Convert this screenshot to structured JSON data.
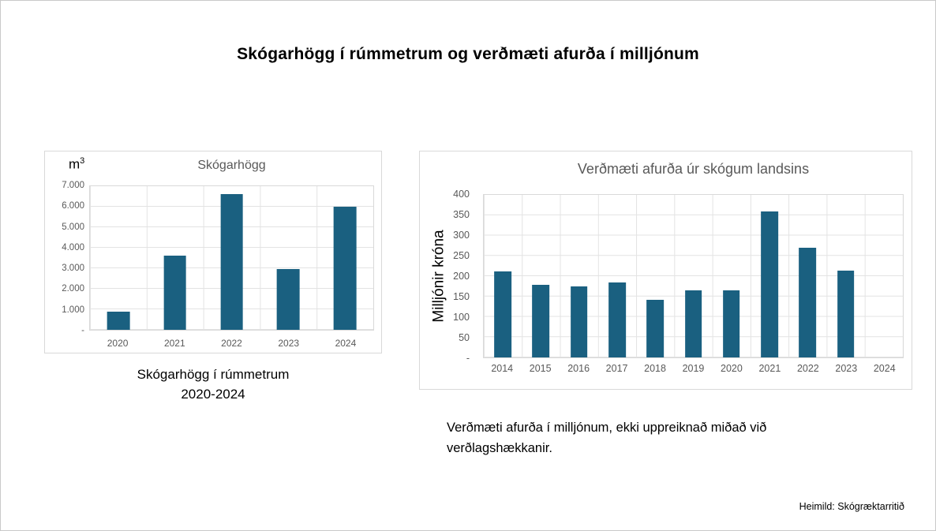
{
  "page": {
    "title": "Skógarhögg í rúmmetrum og verðmæti afurða í milljónum",
    "source_note": "Heimild: Skógræktarritið"
  },
  "captions": {
    "left_line1": "Skógarhögg í rúmmetrum",
    "left_line2": "2020-2024",
    "right": "Verðmæti afurða í milljónum, ekki uppreiknað miðað við verðlagshækkanir."
  },
  "colors": {
    "bar": "#1A6080",
    "axis_text": "#595959",
    "grid": "#E3E3E3",
    "chart_border": "#D9D9D9"
  },
  "chart_data": [
    {
      "type": "bar",
      "title": "Skógarhögg",
      "unit": {
        "base": "m",
        "sup": "3"
      },
      "categories": [
        "2020",
        "2021",
        "2022",
        "2023",
        "2024"
      ],
      "values": [
        900,
        3600,
        6600,
        2950,
        6000
      ],
      "ylim": [
        0,
        7000
      ],
      "ytick_labels": [
        "-",
        "1.000",
        "2.000",
        "3.000",
        "4.000",
        "5.000",
        "6.000",
        "7.000"
      ],
      "grid": true,
      "legend": "none",
      "bar_color": "#1A6080",
      "bar_width_frac": 0.4
    },
    {
      "type": "bar",
      "title": "Verðmæti afurða úr skógum landsins",
      "ylabel": "Milljónir króna",
      "categories": [
        "2014",
        "2015",
        "2016",
        "2017",
        "2018",
        "2019",
        "2020",
        "2021",
        "2022",
        "2023",
        "2024"
      ],
      "values": [
        212,
        179,
        175,
        185,
        141,
        165,
        166,
        360,
        270,
        213,
        null
      ],
      "ylim": [
        0,
        400
      ],
      "ytick_labels": [
        "-",
        "50",
        "100",
        "150",
        "200",
        "250",
        "300",
        "350",
        "400"
      ],
      "grid": true,
      "legend": "none",
      "bar_color": "#1A6080",
      "bar_width_frac": 0.45
    }
  ]
}
